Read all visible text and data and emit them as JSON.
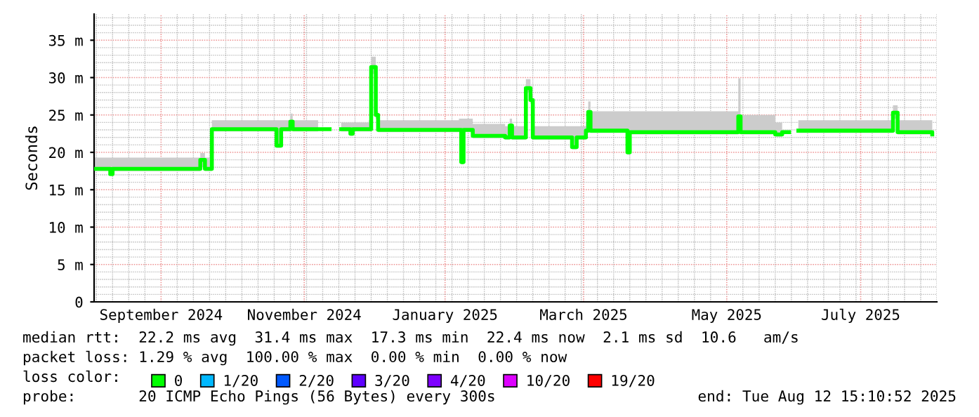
{
  "chart_data": {
    "type": "step",
    "ylabel": "Seconds",
    "x": [
      "2024-08-12",
      "2024-08-18",
      "2024-08-19",
      "2024-08-20",
      "2024-09-25",
      "2024-09-27",
      "2024-09-29",
      "2024-10-02",
      "2024-10-29",
      "2024-10-30",
      "2024-11-01",
      "2024-11-05",
      "2024-11-06",
      "2024-11-17",
      "2024-11-22",
      "2024-11-27",
      "2024-12-01",
      "2024-12-02",
      "2024-12-09",
      "2024-12-10",
      "2024-12-12",
      "2024-12-13",
      "2025-01-17",
      "2025-01-18",
      "2025-01-19",
      "2025-01-23",
      "2025-02-06",
      "2025-02-08",
      "2025-02-09",
      "2025-02-15",
      "2025-02-17",
      "2025-02-18",
      "2025-03-06",
      "2025-03-07",
      "2025-03-09",
      "2025-03-13",
      "2025-03-14",
      "2025-03-15",
      "2025-03-30",
      "2025-03-31",
      "2025-04-01",
      "2025-05-17",
      "2025-05-18",
      "2025-05-19",
      "2025-06-01",
      "2025-06-03",
      "2025-06-06",
      "2025-06-09",
      "2025-06-13",
      "2025-07-23",
      "2025-07-24",
      "2025-07-26",
      "2025-08-10"
    ],
    "series": [
      {
        "name": "0",
        "color": "#00ff00",
        "values": [
          17.8,
          17.8,
          17.1,
          17.8,
          17.8,
          19.0,
          17.8,
          23.1,
          23.1,
          20.9,
          23.1,
          24.1,
          23.1,
          23.1,
          null,
          23.1,
          22.5,
          23.1,
          23.1,
          31.4,
          25.0,
          23.0,
          23.0,
          18.7,
          23.0,
          22.2,
          22.0,
          23.6,
          22.0,
          28.6,
          27.0,
          22.0,
          22.0,
          20.7,
          22.0,
          22.9,
          25.4,
          22.9,
          22.9,
          20.0,
          22.7,
          22.7,
          24.8,
          22.7,
          22.7,
          22.4,
          22.7,
          null,
          22.9,
          22.9,
          25.3,
          22.7,
          22.4
        ],
        "lower": [
          17.5,
          17.5,
          16.9,
          17.5,
          17.5,
          18.0,
          17.5,
          22.8,
          22.8,
          20.6,
          22.8,
          23.5,
          22.8,
          22.8,
          null,
          22.8,
          22.2,
          22.8,
          22.8,
          30.5,
          24.5,
          22.7,
          22.7,
          18.4,
          22.7,
          21.9,
          21.7,
          23.2,
          21.7,
          28.0,
          26.5,
          21.7,
          21.7,
          20.4,
          21.7,
          22.6,
          24.8,
          22.6,
          22.6,
          19.7,
          22.4,
          22.4,
          24.0,
          22.4,
          22.4,
          22.1,
          22.4,
          null,
          22.6,
          22.6,
          24.5,
          22.4,
          22.1
        ],
        "upper": [
          19.3,
          19.3,
          19.3,
          19.3,
          19.3,
          19.9,
          19.3,
          24.3,
          24.3,
          24.3,
          24.3,
          25.2,
          24.3,
          24.3,
          null,
          24.0,
          24.0,
          24.0,
          24.3,
          32.8,
          25.5,
          24.3,
          24.5,
          24.5,
          24.5,
          23.8,
          23.5,
          24.5,
          23.5,
          29.8,
          27.8,
          23.5,
          23.5,
          23.5,
          23.5,
          24.0,
          26.8,
          25.5,
          25.5,
          25.5,
          25.5,
          25.5,
          29.9,
          25.0,
          25.0,
          24.0,
          24.0,
          null,
          24.3,
          24.3,
          26.3,
          24.3,
          24.0
        ]
      },
      {
        "name": "1/20",
        "color": "#00b8ff",
        "values": [
          null,
          null,
          null,
          null,
          null,
          null,
          null,
          null,
          null,
          null,
          null,
          null,
          null,
          null,
          null,
          null,
          null,
          null,
          null,
          null,
          null,
          null,
          null,
          null,
          null,
          null,
          null,
          null,
          null,
          null,
          null,
          null,
          null,
          null,
          null,
          null,
          null,
          null,
          null,
          null,
          null,
          null,
          null,
          null,
          null,
          null,
          null,
          null,
          null,
          null,
          null,
          null,
          null
        ]
      },
      {
        "name": "2/20",
        "color": "#0059ff",
        "values": [
          null,
          null,
          null,
          null,
          null,
          null,
          null,
          null,
          null,
          null,
          null,
          null,
          null,
          null,
          null,
          null,
          null,
          null,
          null,
          null,
          null,
          null,
          null,
          null,
          null,
          null,
          null,
          null,
          null,
          null,
          null,
          null,
          null,
          null,
          null,
          null,
          null,
          null,
          null,
          null,
          null,
          null,
          null,
          null,
          null,
          null,
          null,
          null,
          null,
          null,
          null,
          null,
          null
        ]
      },
      {
        "name": "3/20",
        "color": "#5e00ff",
        "values": [
          null,
          null,
          null,
          null,
          null,
          null,
          null,
          null,
          null,
          null,
          null,
          null,
          null,
          null,
          null,
          null,
          null,
          null,
          null,
          null,
          null,
          null,
          null,
          null,
          null,
          null,
          null,
          null,
          null,
          null,
          null,
          null,
          null,
          null,
          null,
          null,
          null,
          null,
          null,
          null,
          null,
          null,
          null,
          null,
          null,
          null,
          null,
          null,
          null,
          null,
          null,
          null,
          null
        ]
      },
      {
        "name": "4/20",
        "color": "#7e00ff",
        "values": [
          null,
          null,
          null,
          null,
          null,
          null,
          null,
          null,
          null,
          null,
          null,
          null,
          null,
          null,
          null,
          null,
          null,
          null,
          null,
          null,
          null,
          null,
          null,
          null,
          null,
          null,
          null,
          null,
          null,
          null,
          null,
          null,
          null,
          null,
          null,
          null,
          null,
          null,
          null,
          null,
          null,
          null,
          null,
          null,
          null,
          null,
          null,
          null,
          null,
          null,
          null,
          null,
          null
        ]
      },
      {
        "name": "10/20",
        "color": "#dd00ff",
        "values": [
          null,
          null,
          null,
          null,
          null,
          null,
          null,
          null,
          null,
          null,
          null,
          null,
          null,
          null,
          null,
          null,
          null,
          null,
          null,
          null,
          null,
          null,
          null,
          null,
          null,
          null,
          null,
          null,
          null,
          null,
          null,
          null,
          null,
          null,
          null,
          null,
          null,
          null,
          null,
          null,
          null,
          null,
          null,
          null,
          null,
          null,
          null,
          null,
          null,
          null,
          null,
          null,
          null
        ]
      },
      {
        "name": "19/20",
        "color": "#ff0000",
        "values": [
          null,
          null,
          null,
          null,
          null,
          null,
          null,
          null,
          null,
          null,
          null,
          null,
          null,
          null,
          null,
          null,
          null,
          null,
          null,
          null,
          null,
          null,
          null,
          null,
          null,
          null,
          null,
          null,
          null,
          null,
          null,
          null,
          null,
          null,
          null,
          null,
          null,
          null,
          null,
          null,
          null,
          null,
          null,
          null,
          null,
          null,
          null,
          null,
          null,
          null,
          null,
          null,
          null
        ]
      }
    ],
    "legend_title": "loss color:",
    "legend": "bottom left",
    "xlim": [
      "2024-08-12",
      "2025-08-12"
    ],
    "xticks": [
      {
        "value": "2024-09-10",
        "label": "September 2024"
      },
      {
        "value": "2024-11-11",
        "label": "November 2024"
      },
      {
        "value": "2025-01-11",
        "label": "January 2025"
      },
      {
        "value": "2025-03-12",
        "label": "March 2025"
      },
      {
        "value": "2025-05-13",
        "label": "May 2025"
      },
      {
        "value": "2025-07-10",
        "label": "July 2025"
      }
    ],
    "ylim": [
      0,
      38.5
    ],
    "yticks": [
      0,
      {
        "value": 5,
        "label": "5 m"
      },
      {
        "value": 10,
        "label": "10 m"
      },
      {
        "value": 15,
        "label": "15 m"
      },
      {
        "value": 20,
        "label": "20 m"
      },
      {
        "value": 25,
        "label": "25 m"
      },
      {
        "value": 30,
        "label": "30 m"
      },
      {
        "value": 35,
        "label": "35 m"
      }
    ],
    "grid": true,
    "annotations": [
      "median rtt:  22.2 ms avg  31.4 ms max  17.3 ms min  22.4 ms now  2.1 ms sd  10.6   am/s",
      "packet loss: 1.29 % avg  100.00 % max  0.00 % min  0.00 % now",
      "probe:       20 ICMP Echo Pings (56 Bytes) every 300s",
      "end: Tue Aug 12 15:10:52 2025"
    ]
  }
}
